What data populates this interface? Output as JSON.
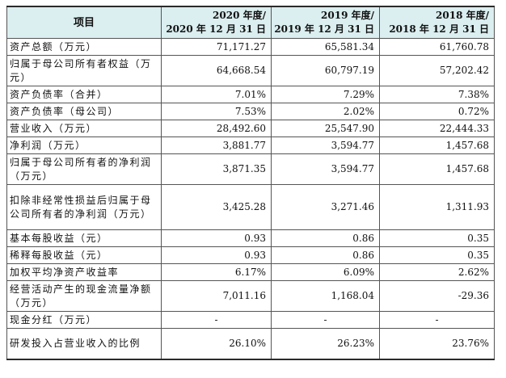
{
  "header": {
    "item": "项目",
    "col2020_line1": "2020 年度/",
    "col2020_line2": "2020 年 12 月 31 日",
    "col2019_line1": "2019 年度/",
    "col2019_line2": "2019 年 12 月 31 日",
    "col2018_line1": "2018 年度/",
    "col2018_line2": "2018 年 12 月 31 日"
  },
  "rows": [
    {
      "label": "资产总额（万元）",
      "v2020": "71,171.27",
      "v2019": "65,581.34",
      "v2018": "61,760.78"
    },
    {
      "label": "归属于母公司所有者权益（万元）",
      "v2020": "64,668.54",
      "v2019": "60,797.19",
      "v2018": "57,202.42"
    },
    {
      "label": "资产负债率（合并）",
      "v2020": "7.01%",
      "v2019": "7.29%",
      "v2018": "7.38%"
    },
    {
      "label": "资产负债率（母公司）",
      "v2020": "7.53%",
      "v2019": "2.02%",
      "v2018": "0.72%"
    },
    {
      "label": "营业收入（万元）",
      "v2020": "28,492.60",
      "v2019": "25,547.90",
      "v2018": "22,444.33"
    },
    {
      "label": "净利润（万元）",
      "v2020": "3,881.77",
      "v2019": "3,594.77",
      "v2018": "1,457.68"
    },
    {
      "label": "归属于母公司所有者的净利润（万元）",
      "v2020": "3,871.35",
      "v2019": "3,594.77",
      "v2018": "1,457.68"
    },
    {
      "label": "扣除非经常性损益后归属于母公司所有者的净利润（万元）",
      "v2020": "3,425.28",
      "v2019": "3,271.46",
      "v2018": "1,311.93"
    },
    {
      "label": "基本每股收益（元）",
      "v2020": "0.93",
      "v2019": "0.86",
      "v2018": "0.35"
    },
    {
      "label": "稀释每股收益（元）",
      "v2020": "0.93",
      "v2019": "0.86",
      "v2018": "0.35"
    },
    {
      "label": "加权平均净资产收益率",
      "v2020": "6.17%",
      "v2019": "6.09%",
      "v2018": "2.62%"
    },
    {
      "label": "经营活动产生的现金流量净额（万元）",
      "v2020": "7,011.16",
      "v2019": "1,168.04",
      "v2018": "-29.36"
    },
    {
      "label": "现金分红（万元）",
      "v2020": "-",
      "v2019": "-",
      "v2018": "-"
    },
    {
      "label": "研发投入占营业收入的比例",
      "v2020": "26.10%",
      "v2019": "26.23%",
      "v2018": "23.76%"
    }
  ],
  "colors": {
    "header_bg": "#dbeef0",
    "border": "#555555"
  }
}
